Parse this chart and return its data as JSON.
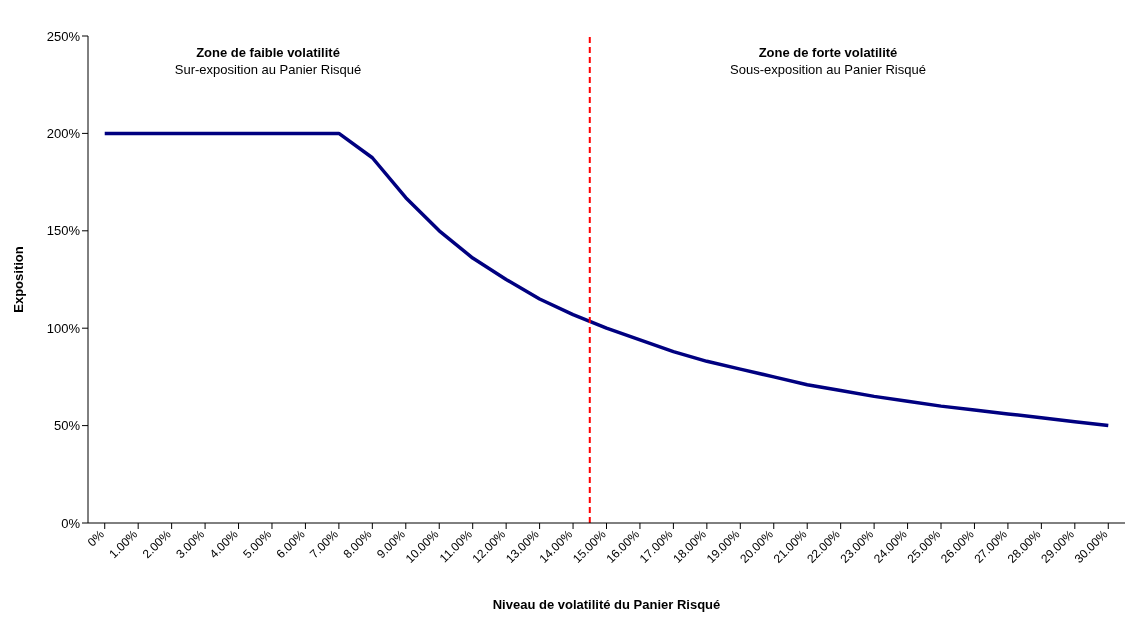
{
  "chart_data": {
    "type": "line",
    "xlabel": "Niveau de volatilité du Panier Risqué",
    "ylabel": "Exposition",
    "x": [
      0,
      1,
      2,
      3,
      4,
      5,
      6,
      7,
      8,
      9,
      10,
      11,
      12,
      13,
      14,
      15,
      16,
      17,
      18,
      19,
      20,
      21,
      22,
      23,
      24,
      25,
      26,
      27,
      28,
      29,
      30
    ],
    "series": [
      {
        "color": "#000080",
        "values": [
          200,
          200,
          200,
          200,
          200,
          200,
          200,
          200,
          187.5,
          167,
          150,
          136,
          125,
          115,
          107,
          100,
          94,
          88,
          83,
          79,
          75,
          71,
          68,
          65,
          62.5,
          60,
          58,
          56,
          54,
          52,
          50
        ]
      }
    ],
    "xlim": [
      -0.5,
      30.5
    ],
    "xticks": [
      {
        "value": 0,
        "label": "0%"
      },
      {
        "value": 1,
        "label": "1.00%"
      },
      {
        "value": 2,
        "label": "2.00%"
      },
      {
        "value": 3,
        "label": "3.00%"
      },
      {
        "value": 4,
        "label": "4.00%"
      },
      {
        "value": 5,
        "label": "5.00%"
      },
      {
        "value": 6,
        "label": "6.00%"
      },
      {
        "value": 7,
        "label": "7.00%"
      },
      {
        "value": 8,
        "label": "8.00%"
      },
      {
        "value": 9,
        "label": "9.00%"
      },
      {
        "value": 10,
        "label": "10.00%"
      },
      {
        "value": 11,
        "label": "11.00%"
      },
      {
        "value": 12,
        "label": "12.00%"
      },
      {
        "value": 13,
        "label": "13.00%"
      },
      {
        "value": 14,
        "label": "14.00%"
      },
      {
        "value": 15,
        "label": "15.00%"
      },
      {
        "value": 16,
        "label": "16.00%"
      },
      {
        "value": 17,
        "label": "17.00%"
      },
      {
        "value": 18,
        "label": "18.00%"
      },
      {
        "value": 19,
        "label": "19.00%"
      },
      {
        "value": 20,
        "label": "20.00%"
      },
      {
        "value": 21,
        "label": "21.00%"
      },
      {
        "value": 22,
        "label": "22.00%"
      },
      {
        "value": 23,
        "label": "23.00%"
      },
      {
        "value": 24,
        "label": "24.00%"
      },
      {
        "value": 25,
        "label": "25.00%"
      },
      {
        "value": 26,
        "label": "26.00%"
      },
      {
        "value": 27,
        "label": "27.00%"
      },
      {
        "value": 28,
        "label": "28.00%"
      },
      {
        "value": 29,
        "label": "29.00%"
      },
      {
        "value": 30,
        "label": "30.00%"
      }
    ],
    "ylim": [
      0,
      250
    ],
    "yticks": [
      {
        "value": 0,
        "label": "0%"
      },
      {
        "value": 50,
        "label": "50%"
      },
      {
        "value": 100,
        "label": "100%"
      },
      {
        "value": 150,
        "label": "150%"
      },
      {
        "value": 200,
        "label": "200%"
      },
      {
        "value": 250,
        "label": "250%"
      }
    ],
    "ref_lines": [
      {
        "axis": "x",
        "value": 14.5,
        "color": "#ff0000",
        "line_style": "dashed"
      }
    ],
    "annotations": [
      "Zone de faible volatilité",
      "Sur-exposition au Panier Risqué",
      "Zone de forte volatilité",
      "Sous-exposition au Panier Risqué"
    ],
    "grid": false,
    "legend": false,
    "marker": "none",
    "line_style": "solid"
  }
}
